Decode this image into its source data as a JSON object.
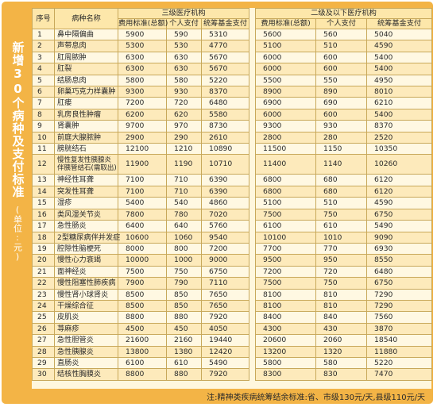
{
  "side_title": "新增30个病种及支付标准",
  "side_unit": "(单位:元)",
  "header": {
    "seq": "序号",
    "name": "病种名称",
    "group3": "三级医疗机构",
    "group2": "二级及以下医疗机构",
    "fee": "费用标准(总额)",
    "personal": "个人支付",
    "fund": "统筹基金支付"
  },
  "rows": [
    [
      "1",
      "鼻中隔偏曲",
      "5900",
      "590",
      "5310",
      "5600",
      "560",
      "5040"
    ],
    [
      "2",
      "声带息肉",
      "5300",
      "530",
      "4770",
      "5100",
      "510",
      "4590"
    ],
    [
      "3",
      "肛周脓肿",
      "6300",
      "630",
      "5670",
      "6000",
      "600",
      "5400"
    ],
    [
      "4",
      "肛裂",
      "6300",
      "630",
      "5670",
      "6000",
      "600",
      "5400"
    ],
    [
      "5",
      "结肠息肉",
      "5800",
      "580",
      "5220",
      "5500",
      "550",
      "4950"
    ],
    [
      "6",
      "卵巢巧克力样囊肿",
      "9300",
      "930",
      "8370",
      "8900",
      "890",
      "8010"
    ],
    [
      "7",
      "肛瘘",
      "7200",
      "720",
      "6480",
      "6900",
      "690",
      "6210"
    ],
    [
      "8",
      "乳房良性肿瘤",
      "6200",
      "620",
      "5580",
      "6000",
      "600",
      "5400"
    ],
    [
      "9",
      "肾囊肿",
      "9700",
      "970",
      "8730",
      "9300",
      "930",
      "8370"
    ],
    [
      "10",
      "前庭大腺脓肿",
      "2900",
      "290",
      "2610",
      "2800",
      "280",
      "2520"
    ],
    [
      "11",
      "膀胱结石",
      "12100",
      "1210",
      "10890",
      "11500",
      "1150",
      "10350"
    ],
    [
      "12",
      "慢性复发性胰腺炎伴胰管结石(需取出)",
      "11900",
      "1190",
      "10710",
      "11400",
      "1140",
      "10260"
    ],
    [
      "13",
      "神经性耳聋",
      "7100",
      "710",
      "6390",
      "6800",
      "680",
      "6120"
    ],
    [
      "14",
      "突发性耳聋",
      "7100",
      "710",
      "6390",
      "6800",
      "680",
      "6120"
    ],
    [
      "15",
      "湿疹",
      "5400",
      "540",
      "4860",
      "5100",
      "510",
      "4590"
    ],
    [
      "16",
      "类风湿关节炎",
      "7800",
      "780",
      "7020",
      "7500",
      "750",
      "6750"
    ],
    [
      "17",
      "急性肠炎",
      "6400",
      "640",
      "5760",
      "6100",
      "610",
      "5490"
    ],
    [
      "18",
      "2型糖尿病伴并发症",
      "10600",
      "1060",
      "9540",
      "10100",
      "1010",
      "9090"
    ],
    [
      "19",
      "腔隙性脑梗死",
      "8000",
      "800",
      "7200",
      "7700",
      "770",
      "6930"
    ],
    [
      "20",
      "慢性心力衰竭",
      "10000",
      "1000",
      "9000",
      "9500",
      "950",
      "8550"
    ],
    [
      "21",
      "面神经炎",
      "7500",
      "750",
      "6750",
      "7200",
      "720",
      "6480"
    ],
    [
      "22",
      "慢性阻塞性肺疾病",
      "7900",
      "790",
      "7110",
      "7500",
      "750",
      "6750"
    ],
    [
      "23",
      "慢性肾小球肾炎",
      "8500",
      "850",
      "7650",
      "8100",
      "810",
      "7290"
    ],
    [
      "24",
      "干燥综合征",
      "8500",
      "850",
      "7650",
      "8100",
      "810",
      "7290"
    ],
    [
      "25",
      "皮肌炎",
      "8800",
      "880",
      "7920",
      "8400",
      "840",
      "7560"
    ],
    [
      "26",
      "荨麻疹",
      "4500",
      "450",
      "4050",
      "4300",
      "430",
      "3870"
    ],
    [
      "27",
      "急性胆管炎",
      "21600",
      "2160",
      "19440",
      "20600",
      "2060",
      "18540"
    ],
    [
      "28",
      "急性胰腺炎",
      "13800",
      "1380",
      "12420",
      "13200",
      "1320",
      "11880"
    ],
    [
      "29",
      "直肠炎",
      "6100",
      "610",
      "5490",
      "5800",
      "580",
      "5220"
    ],
    [
      "30",
      "结核性胸膜炎",
      "8800",
      "880",
      "7920",
      "8300",
      "830",
      "7470"
    ]
  ],
  "note": "注:精神类疾病统筹结余标准:省、市级130元/天,县级110元/天"
}
